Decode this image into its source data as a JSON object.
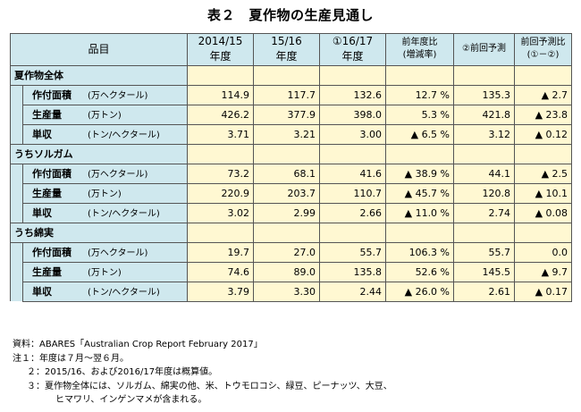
{
  "title": "表２　夏作物の生産見通し",
  "headers": {
    "item": "品目",
    "col1_line1": "2014/15",
    "col1_line2": "年度",
    "col2_line1": "15/16",
    "col2_line2": "年度",
    "col3_line1": "①16/17",
    "col3_line2": "年度",
    "col4_line1": "前年度比",
    "col4_line2": "(増減率)",
    "col5": "②前回予測",
    "col6_line1": "前回予測比",
    "col6_line2": "(①－②)"
  },
  "sections": [
    {
      "name": "夏作物全体",
      "rows": [
        {
          "item": "作付面積",
          "unit": "(万ヘクタール)",
          "v1": "114.9",
          "v2": "117.7",
          "v3": "132.6",
          "v4": "12.7 %",
          "v5": "135.3",
          "v6": "▲ 2.7"
        },
        {
          "item": "生産量",
          "unit": "(万トン)",
          "v1": "426.2",
          "v2": "377.9",
          "v3": "398.0",
          "v4": "5.3 %",
          "v5": "421.8",
          "v6": "▲ 23.8"
        },
        {
          "item": "単収",
          "unit": "(トン/ヘクタール)",
          "v1": "3.71",
          "v2": "3.21",
          "v3": "3.00",
          "v4": "▲ 6.5 %",
          "v5": "3.12",
          "v6": "▲ 0.12"
        }
      ]
    },
    {
      "name": "うちソルガム",
      "rows": [
        {
          "item": "作付面積",
          "unit": "(万ヘクタール)",
          "v1": "73.2",
          "v2": "68.1",
          "v3": "41.6",
          "v4": "▲ 38.9 %",
          "v5": "44.1",
          "v6": "▲ 2.5"
        },
        {
          "item": "生産量",
          "unit": "(万トン)",
          "v1": "220.9",
          "v2": "203.7",
          "v3": "110.7",
          "v4": "▲ 45.7 %",
          "v5": "120.8",
          "v6": "▲ 10.1"
        },
        {
          "item": "単収",
          "unit": "(トン/ヘクタール)",
          "v1": "3.02",
          "v2": "2.99",
          "v3": "2.66",
          "v4": "▲ 11.0 %",
          "v5": "2.74",
          "v6": "▲ 0.08"
        }
      ]
    },
    {
      "name": "うち綿実",
      "rows": [
        {
          "item": "作付面積",
          "unit": "(万ヘクタール)",
          "v1": "19.7",
          "v2": "27.0",
          "v3": "55.7",
          "v4": "106.3 %",
          "v5": "55.7",
          "v6": "0.0"
        },
        {
          "item": "生産量",
          "unit": "(万トン)",
          "v1": "74.6",
          "v2": "89.0",
          "v3": "135.8",
          "v4": "52.6 %",
          "v5": "145.5",
          "v6": "▲ 9.7"
        },
        {
          "item": "単収",
          "unit": "(トン/ヘクタール)",
          "v1": "3.79",
          "v2": "3.30",
          "v3": "2.44",
          "v4": "▲ 26.0 %",
          "v5": "2.61",
          "v6": "▲ 0.17"
        }
      ]
    }
  ],
  "notes": {
    "source": "資料：ABARES「Australian Crop Report February 2017」",
    "note1": "注１：年度は７月～翌６月。",
    "note2": "２：2015/16、および2016/17年度は概算値。",
    "note3a": "３：夏作物全体には、ソルガム、綿実の他、米、トウモロコシ、緑豆、ピーナッツ、大豆、",
    "note3b": "ヒマワリ、インゲンマメが含まれる。"
  }
}
